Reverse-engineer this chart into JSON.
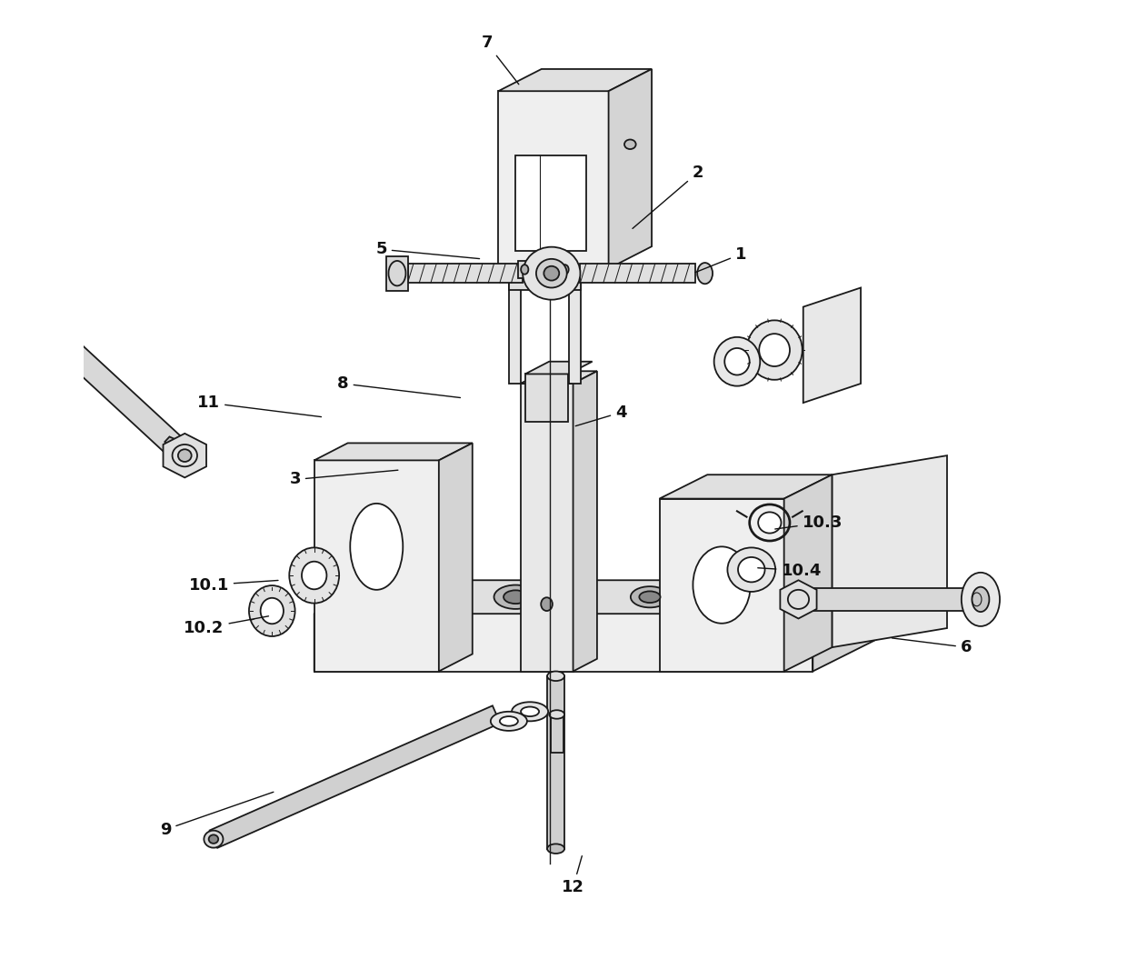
{
  "bg_color": "#ffffff",
  "line_color": "#1a1a1a",
  "figsize": [
    12.4,
    10.55
  ],
  "dpi": 100,
  "labels": {
    "1": [
      0.685,
      0.735,
      0.635,
      0.715
    ],
    "2": [
      0.64,
      0.82,
      0.57,
      0.76
    ],
    "3": [
      0.22,
      0.5,
      0.33,
      0.51
    ],
    "4": [
      0.56,
      0.57,
      0.51,
      0.555
    ],
    "5": [
      0.31,
      0.74,
      0.415,
      0.73
    ],
    "6": [
      0.92,
      0.325,
      0.84,
      0.335
    ],
    "7": [
      0.42,
      0.955,
      0.455,
      0.91
    ],
    "8": [
      0.27,
      0.6,
      0.395,
      0.585
    ],
    "9": [
      0.085,
      0.135,
      0.2,
      0.175
    ],
    "10.1": [
      0.13,
      0.39,
      0.205,
      0.395
    ],
    "10.2": [
      0.125,
      0.345,
      0.195,
      0.358
    ],
    "10.3": [
      0.77,
      0.455,
      0.718,
      0.448
    ],
    "10.4": [
      0.748,
      0.405,
      0.7,
      0.408
    ],
    "11": [
      0.13,
      0.58,
      0.25,
      0.565
    ],
    "12": [
      0.51,
      0.075,
      0.52,
      0.11
    ]
  }
}
